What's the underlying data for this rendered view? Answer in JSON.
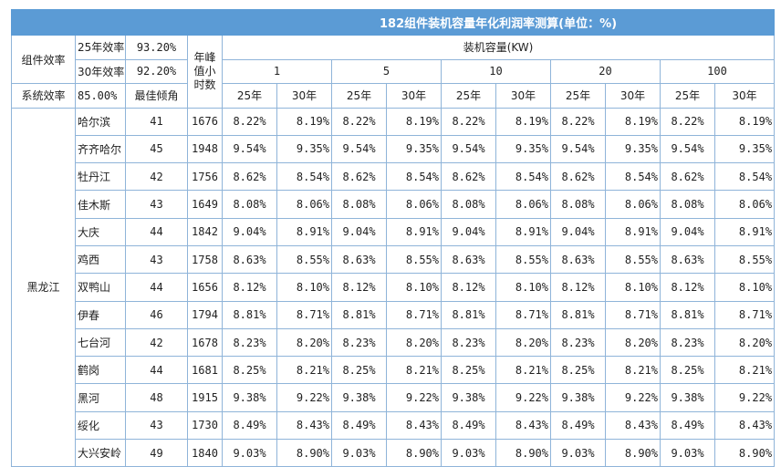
{
  "title": "182组件装机容量年化利润率测算(单位：%)",
  "labels": {
    "module_eff": "组件效率",
    "eff_25": "25年效率",
    "eff_30": "30年效率",
    "system_eff": "系统效率",
    "best_angle": "最佳倾角",
    "peak_hours_lines": [
      "年峰",
      "值小",
      "时数"
    ],
    "capacity": "装机容量(KW)",
    "year25": "25年",
    "year30": "30年",
    "province": "黑龙江"
  },
  "values": {
    "eff_25": "93.20%",
    "eff_30": "92.20%",
    "system_eff": "85.00%"
  },
  "capacities": [
    "1",
    "5",
    "10",
    "20",
    "100"
  ],
  "rows": [
    {
      "city": "哈尔滨",
      "angle": "41",
      "hours": "1676",
      "y25": "8.22%",
      "y30": "8.19%"
    },
    {
      "city": "齐齐哈尔",
      "angle": "45",
      "hours": "1948",
      "y25": "9.54%",
      "y30": "9.35%"
    },
    {
      "city": "牡丹江",
      "angle": "42",
      "hours": "1756",
      "y25": "8.62%",
      "y30": "8.54%"
    },
    {
      "city": "佳木斯",
      "angle": "43",
      "hours": "1649",
      "y25": "8.08%",
      "y30": "8.06%"
    },
    {
      "city": "大庆",
      "angle": "44",
      "hours": "1842",
      "y25": "9.04%",
      "y30": "8.91%"
    },
    {
      "city": "鸡西",
      "angle": "43",
      "hours": "1758",
      "y25": "8.63%",
      "y30": "8.55%"
    },
    {
      "city": "双鸭山",
      "angle": "44",
      "hours": "1656",
      "y25": "8.12%",
      "y30": "8.10%"
    },
    {
      "city": "伊春",
      "angle": "46",
      "hours": "1794",
      "y25": "8.81%",
      "y30": "8.71%"
    },
    {
      "city": "七台河",
      "angle": "42",
      "hours": "1678",
      "y25": "8.23%",
      "y30": "8.20%"
    },
    {
      "city": "鹤岗",
      "angle": "44",
      "hours": "1681",
      "y25": "8.25%",
      "y30": "8.21%"
    },
    {
      "city": "黑河",
      "angle": "48",
      "hours": "1915",
      "y25": "9.38%",
      "y30": "9.22%"
    },
    {
      "city": "绥化",
      "angle": "43",
      "hours": "1730",
      "y25": "8.49%",
      "y30": "8.43%"
    },
    {
      "city": "大兴安岭",
      "angle": "49",
      "hours": "1840",
      "y25": "9.03%",
      "y30": "8.90%"
    }
  ]
}
